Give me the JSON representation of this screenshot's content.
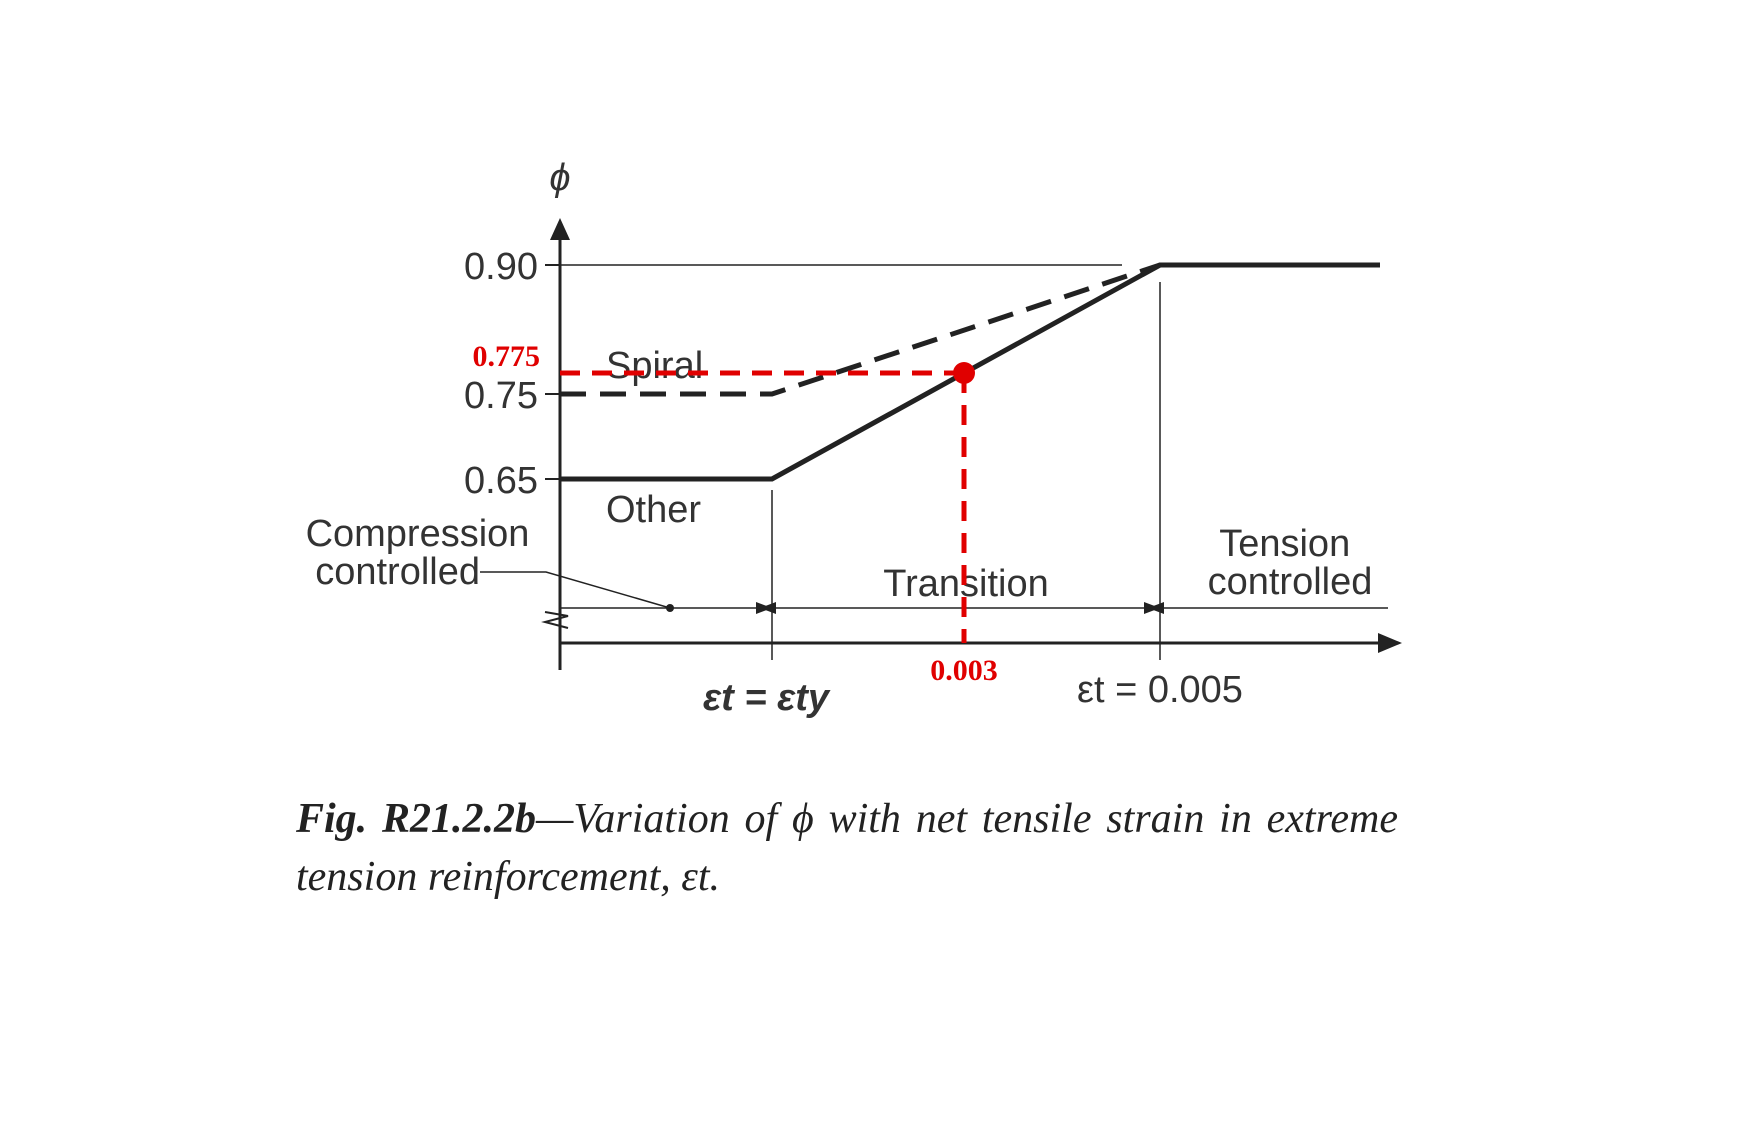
{
  "chart_data": {
    "type": "line",
    "ylabel": "ϕ",
    "y_ticks": [
      "0.90",
      "0.75",
      "0.65"
    ],
    "y_tick_values": [
      0.9,
      0.75,
      0.65
    ],
    "x_tick_labels": {
      "ety": "εt = εty",
      "e005": "εt = 0.005"
    },
    "series": [
      {
        "name": "Spiral",
        "style": "dashed",
        "points": [
          [
            "0",
            0.75
          ],
          [
            "εty",
            0.75
          ],
          [
            "0.005",
            0.9
          ],
          [
            "beyond",
            0.9
          ]
        ]
      },
      {
        "name": "Other",
        "style": "solid",
        "points": [
          [
            "0",
            0.65
          ],
          [
            "εty",
            0.65
          ],
          [
            "0.005",
            0.9
          ],
          [
            "beyond",
            0.9
          ]
        ]
      }
    ],
    "regions": {
      "compression": "Compression\ncontrolled",
      "transition": "Transition",
      "tension": "Tension\ncontrolled"
    },
    "annotation": {
      "x_label": "0.003",
      "y_label": "0.775",
      "x_value": 0.003,
      "y_value": 0.775,
      "color": "#e00000"
    },
    "colors": {
      "line": "#222222",
      "annotation": "#e00000"
    }
  },
  "caption": {
    "label": "Fig. R21.2.2b",
    "text": "—Variation of ϕ with net tensile strain in extreme tension reinforcement, εt."
  }
}
